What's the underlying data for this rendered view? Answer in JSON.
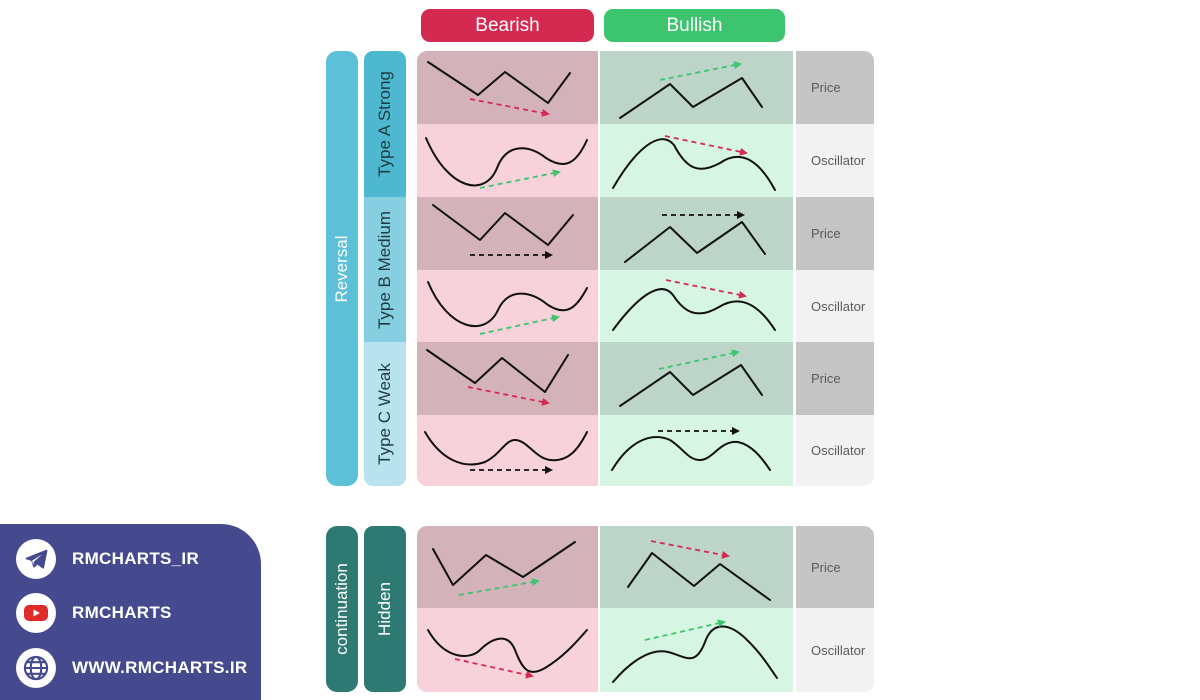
{
  "header": {
    "bearish": "Bearish",
    "bullish": "Bullish"
  },
  "groups": {
    "reversal": "Reversal",
    "continuation": "continuation"
  },
  "types": {
    "a": "Type A Strong",
    "b": "Type B Medium",
    "c": "Type C Weak",
    "hidden": "Hidden"
  },
  "row_labels": {
    "price": "Price",
    "oscillator": "Oscillator"
  },
  "social": {
    "items": [
      {
        "icon": "telegram-icon",
        "text": "RMCHARTS_IR"
      },
      {
        "icon": "youtube-icon",
        "text": "RMCHARTS"
      },
      {
        "icon": "globe-icon",
        "text": "WWW.RMCHARTS.IR"
      }
    ]
  },
  "colors": {
    "bearish_accent": "#d42a52",
    "bullish_accent": "#3cc46e",
    "reversal_bar": "#5cc0d6",
    "continuation_bar": "#2e7a72",
    "arrow_red": "#d42a52",
    "arrow_green": "#3cc46e",
    "arrow_black": "#111111",
    "social_bg": "#454a8e"
  }
}
